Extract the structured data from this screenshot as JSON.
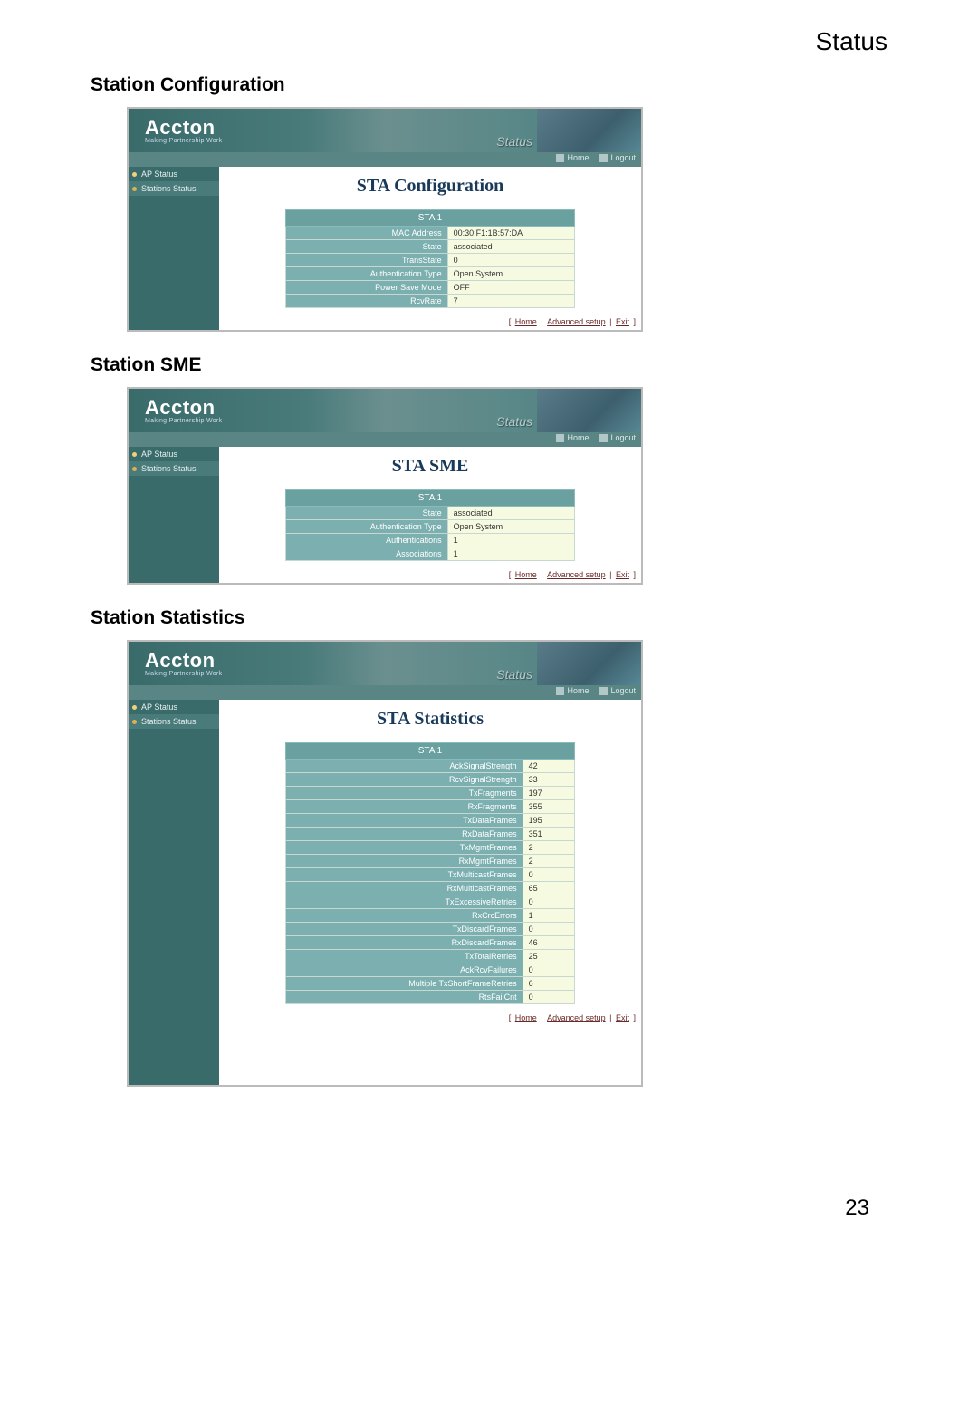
{
  "page": {
    "header_status": "Status",
    "page_number": "23"
  },
  "brand": {
    "name": "Accton",
    "tagline": "Making Partnership Work"
  },
  "banner": {
    "status_label": "Status"
  },
  "topbar": {
    "home": "Home",
    "logout": "Logout"
  },
  "sidebar": {
    "ap_status": "AP Status",
    "stations_status": "Stations Status"
  },
  "footer": {
    "sep": " | ",
    "home": "Home",
    "advanced": "Advanced setup",
    "exit": "Exit"
  },
  "section1": {
    "heading": "Station Configuration",
    "title": "STA Configuration",
    "sta_header": "STA 1",
    "rows": {
      "mac_label": "MAC Address",
      "mac_value": "00:30:F1:1B:57:DA",
      "state_label": "State",
      "state_value": "associated",
      "transstate_label": "TransState",
      "transstate_value": "0",
      "authtype_label": "Authentication Type",
      "authtype_value": "Open System",
      "psm_label": "Power Save Mode",
      "psm_value": "OFF",
      "rcvrate_label": "RcvRate",
      "rcvrate_value": "7"
    }
  },
  "section2": {
    "heading": "Station SME",
    "title": "STA SME",
    "sta_header": "STA 1",
    "rows": {
      "state_label": "State",
      "state_value": "associated",
      "authtype_label": "Authentication Type",
      "authtype_value": "Open System",
      "auths_label": "Authentications",
      "auths_value": "1",
      "assocs_label": "Associations",
      "assocs_value": "1"
    }
  },
  "section3": {
    "heading": "Station Statistics",
    "title": "STA Statistics",
    "sta_header": "STA 1",
    "rows": {
      "r1l": "AckSignalStrength",
      "r1v": "42",
      "r2l": "RcvSignalStrength",
      "r2v": "33",
      "r3l": "TxFragments",
      "r3v": "197",
      "r4l": "RxFragments",
      "r4v": "355",
      "r5l": "TxDataFrames",
      "r5v": "195",
      "r6l": "RxDataFrames",
      "r6v": "351",
      "r7l": "TxMgmtFrames",
      "r7v": "2",
      "r8l": "RxMgmtFrames",
      "r8v": "2",
      "r9l": "TxMulticastFrames",
      "r9v": "0",
      "r10l": "RxMulticastFrames",
      "r10v": "65",
      "r11l": "TxExcessiveRetries",
      "r11v": "0",
      "r12l": "RxCrcErrors",
      "r12v": "1",
      "r13l": "TxDiscardFrames",
      "r13v": "0",
      "r14l": "RxDiscardFrames",
      "r14v": "46",
      "r15l": "TxTotalRetries",
      "r15v": "25",
      "r16l": "AckRcvFailures",
      "r16v": "0",
      "r17l": "Multiple TxShortFrameRetries",
      "r17v": "6",
      "r18l": "RtsFailCnt",
      "r18v": "0"
    }
  }
}
